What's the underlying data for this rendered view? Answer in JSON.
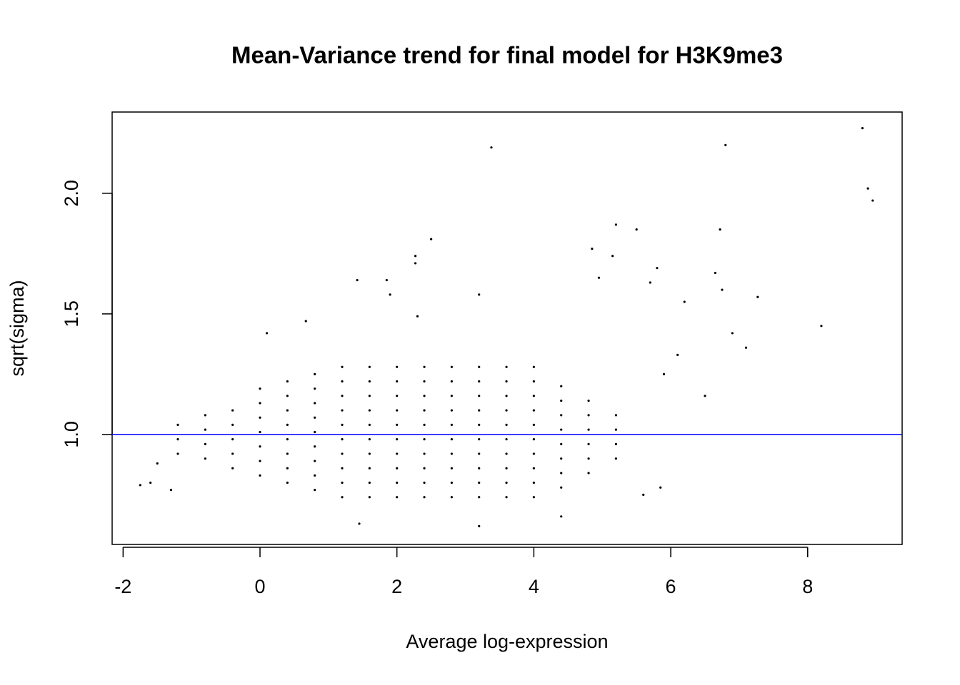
{
  "chart_data": {
    "type": "scatter",
    "title": "Mean-Variance trend for final model for H3K9me3",
    "xlabel": "Average log-expression",
    "ylabel": "sqrt(sigma)",
    "xlim": [
      -2.16,
      9.38
    ],
    "ylim": [
      0.544,
      2.337
    ],
    "xticks": [
      -2,
      0,
      2,
      4,
      6,
      8
    ],
    "yticks": [
      {
        "value": 1,
        "label": "1.0"
      },
      1.5,
      {
        "value": 2,
        "label": "2.0"
      }
    ],
    "color": "#000000",
    "reference_line": {
      "y": 1,
      "color": "#0000ff"
    },
    "x": [
      -1.2,
      -1.2,
      -1.2,
      -0.8,
      -0.8,
      -0.8,
      -0.8,
      -0.4,
      -0.4,
      -0.4,
      -0.4,
      -0.4,
      0,
      0,
      0,
      0,
      0,
      0,
      0,
      0.4,
      0.4,
      0.4,
      0.4,
      0.4,
      0.4,
      0.4,
      0.4,
      0.8,
      0.8,
      0.8,
      0.8,
      0.8,
      0.8,
      0.8,
      0.8,
      0.8,
      1.2,
      1.2,
      1.2,
      1.2,
      1.2,
      1.2,
      1.2,
      1.2,
      1.2,
      1.2,
      1.6,
      1.6,
      1.6,
      1.6,
      1.6,
      1.6,
      1.6,
      1.6,
      1.6,
      1.6,
      2.0,
      2.0,
      2.0,
      2.0,
      2.0,
      2.0,
      2.0,
      2.0,
      2.0,
      2.0,
      2.4,
      2.4,
      2.4,
      2.4,
      2.4,
      2.4,
      2.4,
      2.4,
      2.4,
      2.4,
      2.8,
      2.8,
      2.8,
      2.8,
      2.8,
      2.8,
      2.8,
      2.8,
      2.8,
      2.8,
      3.2,
      3.2,
      3.2,
      3.2,
      3.2,
      3.2,
      3.2,
      3.2,
      3.2,
      3.2,
      3.6,
      3.6,
      3.6,
      3.6,
      3.6,
      3.6,
      3.6,
      3.6,
      3.6,
      3.6,
      4.0,
      4.0,
      4.0,
      4.0,
      4.0,
      4.0,
      4.0,
      4.0,
      4.0,
      4.0,
      4.4,
      4.4,
      4.4,
      4.4,
      4.4,
      4.4,
      4.4,
      4.4,
      4.8,
      4.8,
      4.8,
      4.8,
      4.8,
      4.8,
      5.2,
      5.2,
      5.2,
      5.2,
      3.38,
      6.8,
      8.8,
      8.88,
      8.95,
      6.72,
      5.2,
      5.5,
      2.5,
      2.27,
      2.27,
      5.15,
      4.85,
      1.42,
      1.85,
      7.27,
      8.2,
      7.1,
      6.75,
      6.65,
      5.8,
      4.95,
      3.2,
      6.2,
      6.9,
      5.7,
      1.9,
      2.3,
      0.67,
      0.1,
      6.5,
      6.1,
      5.9,
      5.85,
      5.6,
      3.2,
      1.45,
      4.4,
      -1.75,
      -1.6,
      -1.3,
      -1.5
    ],
    "values": [
      0.92,
      0.98,
      1.04,
      0.9,
      0.96,
      1.02,
      1.08,
      0.86,
      0.92,
      0.98,
      1.04,
      1.1,
      0.83,
      0.89,
      0.95,
      1.01,
      1.07,
      1.13,
      1.19,
      0.8,
      0.86,
      0.92,
      0.98,
      1.04,
      1.1,
      1.16,
      1.22,
      0.77,
      0.83,
      0.89,
      0.95,
      1.01,
      1.07,
      1.13,
      1.19,
      1.25,
      0.74,
      0.8,
      0.86,
      0.92,
      0.98,
      1.04,
      1.1,
      1.16,
      1.22,
      1.28,
      0.74,
      0.8,
      0.86,
      0.92,
      0.98,
      1.04,
      1.1,
      1.16,
      1.22,
      1.28,
      0.74,
      0.8,
      0.86,
      0.92,
      0.98,
      1.04,
      1.1,
      1.16,
      1.22,
      1.28,
      0.74,
      0.8,
      0.86,
      0.92,
      0.98,
      1.04,
      1.1,
      1.16,
      1.22,
      1.28,
      0.74,
      0.8,
      0.86,
      0.92,
      0.98,
      1.04,
      1.1,
      1.16,
      1.22,
      1.28,
      0.74,
      0.8,
      0.86,
      0.92,
      0.98,
      1.04,
      1.1,
      1.16,
      1.22,
      1.28,
      0.74,
      0.8,
      0.86,
      0.92,
      0.98,
      1.04,
      1.1,
      1.16,
      1.22,
      1.28,
      0.74,
      0.8,
      0.86,
      0.92,
      0.98,
      1.04,
      1.1,
      1.16,
      1.22,
      1.28,
      0.78,
      0.84,
      0.9,
      0.96,
      1.02,
      1.08,
      1.14,
      1.2,
      0.84,
      0.9,
      0.96,
      1.02,
      1.08,
      1.14,
      0.9,
      0.96,
      1.02,
      1.08,
      2.19,
      2.2,
      2.27,
      2.02,
      1.97,
      1.85,
      1.87,
      1.85,
      1.81,
      1.74,
      1.71,
      1.74,
      1.77,
      1.64,
      1.64,
      1.57,
      1.45,
      1.36,
      1.6,
      1.67,
      1.69,
      1.65,
      1.58,
      1.55,
      1.42,
      1.63,
      1.58,
      1.49,
      1.47,
      1.42,
      1.16,
      1.33,
      1.25,
      0.78,
      0.75,
      0.62,
      0.63,
      0.66,
      0.79,
      0.8,
      0.77,
      0.88
    ]
  }
}
